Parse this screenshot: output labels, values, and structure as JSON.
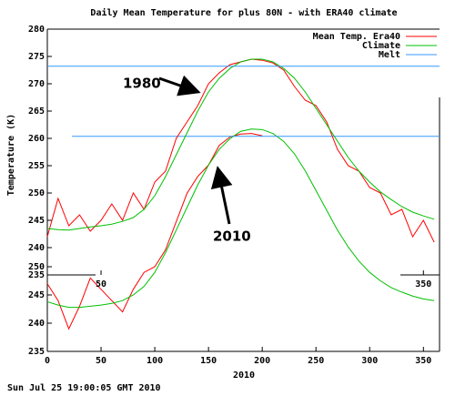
{
  "footer": "Sun Jul 25 19:00:05 GMT 2010",
  "chart_data": [
    {
      "type": "line",
      "title": "Daily Mean Temperature for plus 80N - with ERA40 climate",
      "ylabel": "Temperature (K)",
      "annotations": [
        "1980"
      ],
      "legend": "upper right",
      "xlim": [
        0,
        365
      ],
      "ylim": [
        235,
        280
      ],
      "xticks": [
        50,
        350
      ],
      "yticks": [
        235,
        240,
        245,
        250,
        255,
        260,
        265,
        270,
        275,
        280
      ],
      "x": [
        0,
        10,
        20,
        30,
        40,
        50,
        60,
        70,
        80,
        90,
        100,
        110,
        120,
        130,
        140,
        150,
        160,
        170,
        180,
        190,
        200,
        210,
        220,
        230,
        240,
        250,
        260,
        270,
        280,
        290,
        300,
        310,
        320,
        330,
        340,
        350,
        360
      ],
      "series": [
        {
          "name": "Mean Temp. Era40",
          "color": "#ff0000",
          "values": [
            242,
            249,
            244,
            246,
            243,
            245,
            248,
            245,
            250,
            247,
            252,
            254,
            260,
            263,
            266,
            270,
            272,
            273.5,
            274,
            274.5,
            274.3,
            273.8,
            272.5,
            269.5,
            267,
            266,
            263,
            258,
            255,
            254,
            251,
            250,
            246,
            247,
            242,
            245,
            241
          ]
        },
        {
          "name": "Climate",
          "color": "#00c000",
          "values": [
            243.5,
            243.3,
            243.2,
            243.5,
            243.8,
            244,
            244.3,
            244.8,
            245.5,
            247,
            249.5,
            253,
            257,
            261,
            265,
            268.5,
            271,
            272.8,
            274,
            274.5,
            274.5,
            274,
            272.8,
            271,
            268.5,
            265.5,
            262.5,
            259.5,
            256.5,
            254,
            252,
            250.2,
            248.8,
            247.5,
            246.5,
            245.8,
            245.2
          ]
        },
        {
          "name": "Melt",
          "color": "#3399ff",
          "x": [
            0,
            365
          ],
          "values": [
            273.2,
            273.2
          ]
        }
      ]
    },
    {
      "type": "line",
      "xlabel": "2010",
      "annotations": [
        "2010"
      ],
      "xlim": [
        0,
        365
      ],
      "ylim": [
        235,
        280
      ],
      "xticks": [
        0,
        50,
        100,
        150,
        200,
        250,
        300,
        350
      ],
      "yticks": [
        235,
        240,
        245,
        250
      ],
      "x": [
        0,
        10,
        20,
        30,
        40,
        50,
        60,
        70,
        80,
        90,
        100,
        110,
        120,
        130,
        140,
        150,
        160,
        170,
        180,
        190,
        200,
        210,
        220,
        230,
        240,
        250,
        260,
        270,
        280,
        290,
        300,
        310,
        320,
        330,
        340,
        350,
        360
      ],
      "series": [
        {
          "color": "#ff0000",
          "values": [
            247,
            244,
            239,
            243,
            248,
            246,
            244,
            242,
            246,
            249,
            250,
            253,
            258,
            263,
            266,
            268,
            271.5,
            273,
            273.5,
            273.6,
            273.2,
            null,
            null,
            null,
            null,
            null,
            null,
            null,
            null,
            null,
            null,
            null,
            null,
            null,
            null,
            null,
            null
          ]
        },
        {
          "color": "#00c000",
          "values": [
            243.8,
            243.2,
            242.8,
            242.8,
            243,
            243.2,
            243.5,
            244,
            245,
            246.5,
            249,
            252.5,
            256.5,
            260.5,
            264.5,
            268,
            270.8,
            272.7,
            274,
            274.4,
            274.3,
            273.6,
            272.2,
            270,
            267,
            263.5,
            260,
            256.5,
            253.5,
            251,
            249,
            247.5,
            246.3,
            245.5,
            244.8,
            244.3,
            244
          ]
        },
        {
          "color": "#3399ff",
          "x": [
            23,
            365
          ],
          "values": [
            273.1,
            273.1
          ]
        }
      ]
    }
  ]
}
